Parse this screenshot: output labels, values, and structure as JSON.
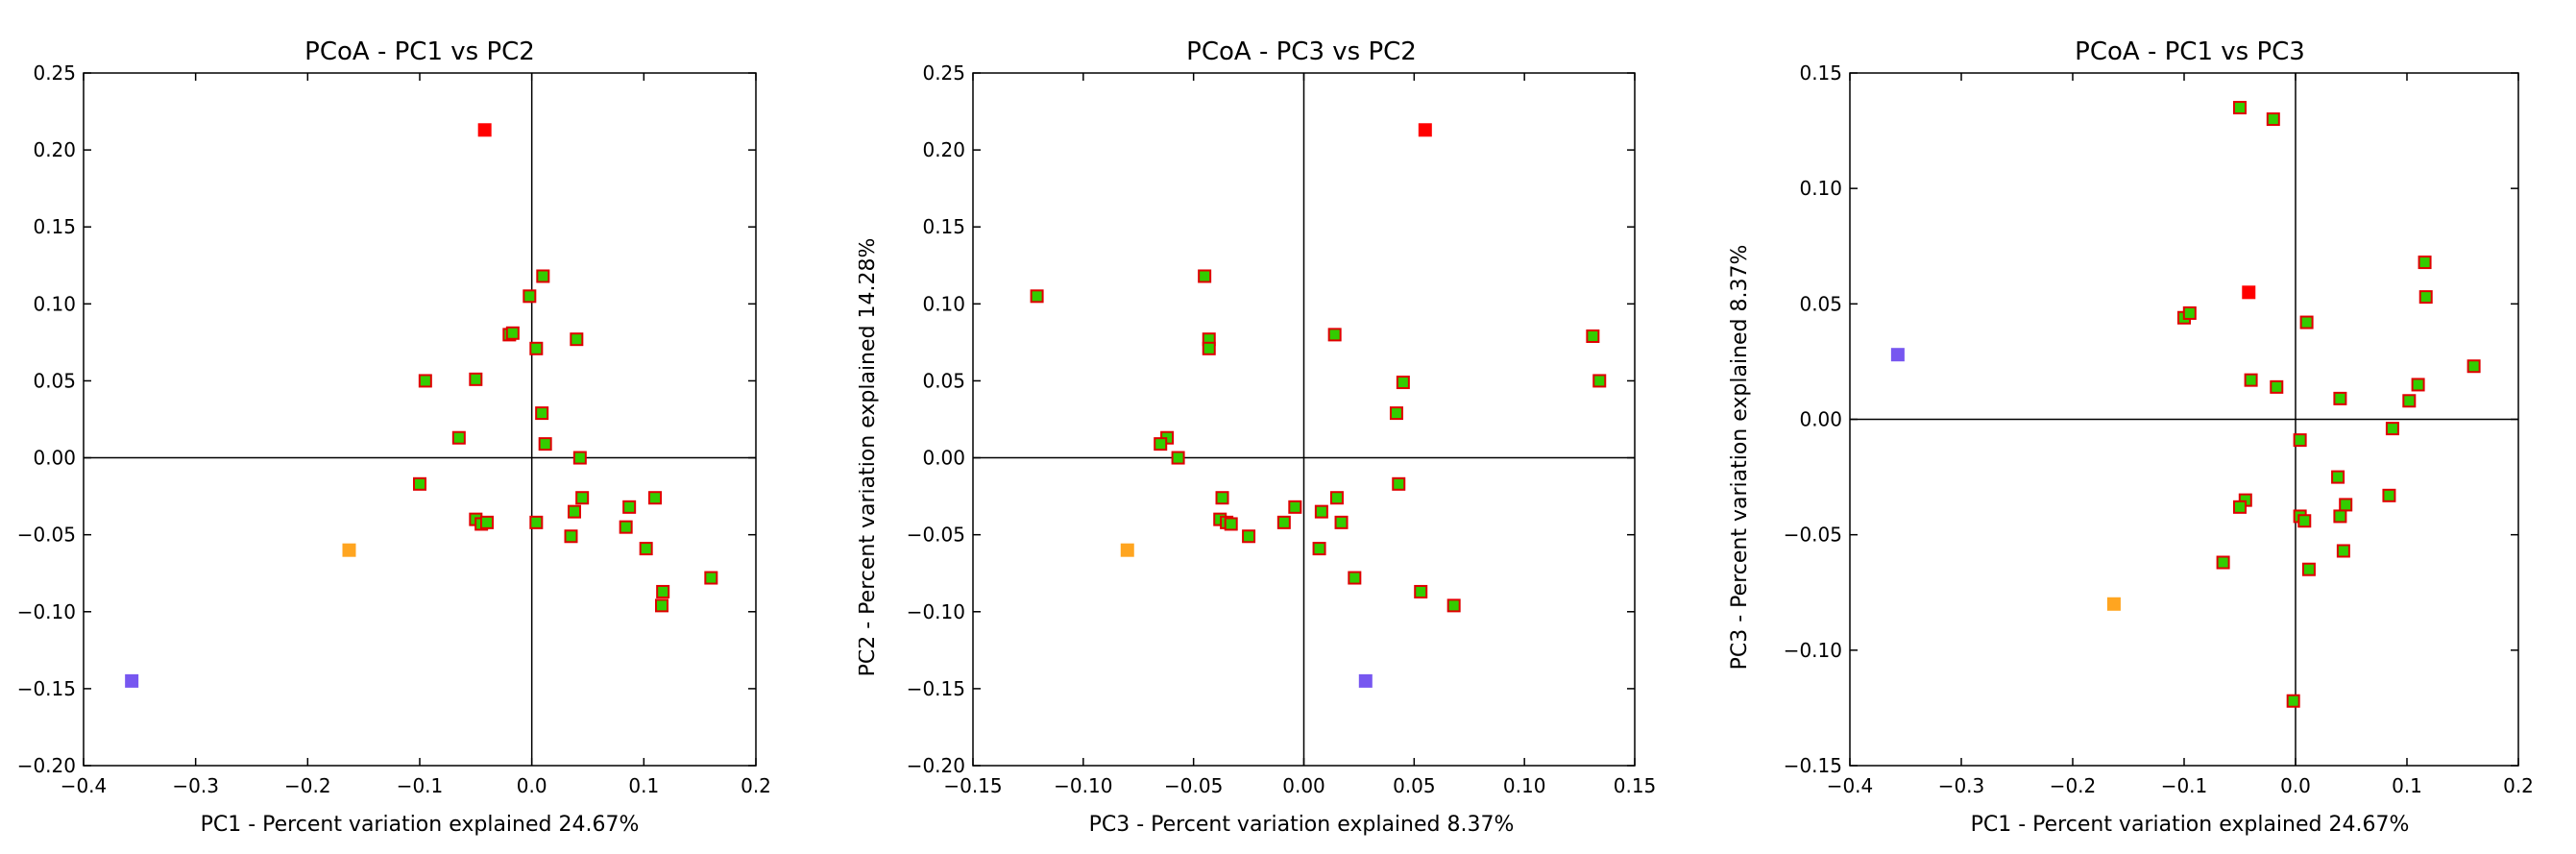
{
  "colors": {
    "marker_fill": "#33cc00",
    "marker_edge": "#e00000",
    "red": "#ff0000",
    "orange": "#ffa520",
    "purple": "#7757f0",
    "axes": "#000000"
  },
  "chart_data": [
    {
      "type": "scatter",
      "title": "PCoA - PC1 vs PC2",
      "xlabel": "PC1 - Percent variation explained 24.67%",
      "ylabel": "",
      "xlim": [
        -0.4,
        0.2
      ],
      "ylim": [
        -0.2,
        0.25
      ],
      "xticks": [
        -0.4,
        -0.3,
        -0.2,
        -0.1,
        0.0,
        0.1,
        0.2
      ],
      "yticks": [
        -0.2,
        -0.15,
        -0.1,
        -0.05,
        0.0,
        0.05,
        0.1,
        0.15,
        0.2,
        0.25
      ],
      "xtick_labels": [
        "−0.4",
        "−0.3",
        "−0.2",
        "−0.1",
        "0.0",
        "0.1",
        "0.2"
      ],
      "ytick_labels": [
        "−0.20",
        "−0.15",
        "−0.10",
        "−0.05",
        "0.00",
        "0.05",
        "0.10",
        "0.15",
        "0.20",
        "0.25"
      ],
      "grid": false,
      "zero_lines": true,
      "points": [
        {
          "x": -0.042,
          "y": 0.213,
          "color": "red"
        },
        {
          "x": -0.163,
          "y": -0.06,
          "color": "orange"
        },
        {
          "x": -0.357,
          "y": -0.145,
          "color": "purple"
        },
        {
          "x": 0.01,
          "y": 0.118,
          "color": "green"
        },
        {
          "x": -0.002,
          "y": 0.105,
          "color": "green"
        },
        {
          "x": -0.02,
          "y": 0.08,
          "color": "green"
        },
        {
          "x": -0.017,
          "y": 0.081,
          "color": "green"
        },
        {
          "x": 0.04,
          "y": 0.077,
          "color": "green"
        },
        {
          "x": 0.004,
          "y": 0.071,
          "color": "green"
        },
        {
          "x": -0.095,
          "y": 0.05,
          "color": "green"
        },
        {
          "x": -0.05,
          "y": 0.051,
          "color": "green"
        },
        {
          "x": 0.009,
          "y": 0.029,
          "color": "green"
        },
        {
          "x": -0.065,
          "y": 0.013,
          "color": "green"
        },
        {
          "x": 0.012,
          "y": 0.009,
          "color": "green"
        },
        {
          "x": 0.043,
          "y": 0.0,
          "color": "green"
        },
        {
          "x": -0.1,
          "y": -0.017,
          "color": "green"
        },
        {
          "x": 0.045,
          "y": -0.026,
          "color": "green"
        },
        {
          "x": 0.11,
          "y": -0.026,
          "color": "green"
        },
        {
          "x": 0.087,
          "y": -0.032,
          "color": "green"
        },
        {
          "x": 0.038,
          "y": -0.035,
          "color": "green"
        },
        {
          "x": -0.05,
          "y": -0.04,
          "color": "green"
        },
        {
          "x": -0.045,
          "y": -0.043,
          "color": "green"
        },
        {
          "x": -0.04,
          "y": -0.042,
          "color": "green"
        },
        {
          "x": 0.004,
          "y": -0.042,
          "color": "green"
        },
        {
          "x": 0.084,
          "y": -0.045,
          "color": "green"
        },
        {
          "x": 0.035,
          "y": -0.051,
          "color": "green"
        },
        {
          "x": 0.102,
          "y": -0.059,
          "color": "green"
        },
        {
          "x": 0.16,
          "y": -0.078,
          "color": "green"
        },
        {
          "x": 0.117,
          "y": -0.087,
          "color": "green"
        },
        {
          "x": 0.116,
          "y": -0.096,
          "color": "green"
        }
      ]
    },
    {
      "type": "scatter",
      "title": "PCoA - PC3 vs PC2",
      "xlabel": "PC3 - Percent variation explained 8.37%",
      "ylabel": "PC2 - Percent variation explained 14.28%",
      "xlim": [
        -0.15,
        0.15
      ],
      "ylim": [
        -0.2,
        0.25
      ],
      "xticks": [
        -0.15,
        -0.1,
        -0.05,
        0.0,
        0.05,
        0.1,
        0.15
      ],
      "yticks": [
        -0.2,
        -0.15,
        -0.1,
        -0.05,
        0.0,
        0.05,
        0.1,
        0.15,
        0.2,
        0.25
      ],
      "xtick_labels": [
        "−0.15",
        "−0.10",
        "−0.05",
        "0.00",
        "0.05",
        "0.10",
        "0.15"
      ],
      "ytick_labels": [
        "−0.20",
        "−0.15",
        "−0.10",
        "−0.05",
        "0.00",
        "0.05",
        "0.10",
        "0.15",
        "0.20",
        "0.25"
      ],
      "grid": false,
      "zero_lines": true,
      "points": [
        {
          "x": 0.055,
          "y": 0.213,
          "color": "red"
        },
        {
          "x": -0.08,
          "y": -0.06,
          "color": "orange"
        },
        {
          "x": 0.028,
          "y": -0.145,
          "color": "purple"
        },
        {
          "x": -0.121,
          "y": 0.105,
          "color": "green"
        },
        {
          "x": -0.045,
          "y": 0.118,
          "color": "green"
        },
        {
          "x": -0.043,
          "y": 0.077,
          "color": "green"
        },
        {
          "x": -0.043,
          "y": 0.071,
          "color": "green"
        },
        {
          "x": 0.014,
          "y": 0.08,
          "color": "green"
        },
        {
          "x": 0.131,
          "y": 0.079,
          "color": "green"
        },
        {
          "x": 0.134,
          "y": 0.05,
          "color": "green"
        },
        {
          "x": 0.045,
          "y": 0.049,
          "color": "green"
        },
        {
          "x": 0.042,
          "y": 0.029,
          "color": "green"
        },
        {
          "x": -0.062,
          "y": 0.013,
          "color": "green"
        },
        {
          "x": -0.065,
          "y": 0.009,
          "color": "green"
        },
        {
          "x": -0.057,
          "y": 0.0,
          "color": "green"
        },
        {
          "x": 0.043,
          "y": -0.017,
          "color": "green"
        },
        {
          "x": -0.037,
          "y": -0.026,
          "color": "green"
        },
        {
          "x": 0.015,
          "y": -0.026,
          "color": "green"
        },
        {
          "x": -0.004,
          "y": -0.032,
          "color": "green"
        },
        {
          "x": 0.008,
          "y": -0.035,
          "color": "green"
        },
        {
          "x": -0.038,
          "y": -0.04,
          "color": "green"
        },
        {
          "x": -0.035,
          "y": -0.042,
          "color": "green"
        },
        {
          "x": -0.033,
          "y": -0.043,
          "color": "green"
        },
        {
          "x": -0.009,
          "y": -0.042,
          "color": "green"
        },
        {
          "x": 0.017,
          "y": -0.042,
          "color": "green"
        },
        {
          "x": -0.025,
          "y": -0.051,
          "color": "green"
        },
        {
          "x": 0.007,
          "y": -0.059,
          "color": "green"
        },
        {
          "x": 0.023,
          "y": -0.078,
          "color": "green"
        },
        {
          "x": 0.053,
          "y": -0.087,
          "color": "green"
        },
        {
          "x": 0.068,
          "y": -0.096,
          "color": "green"
        }
      ]
    },
    {
      "type": "scatter",
      "title": "PCoA - PC1 vs PC3",
      "xlabel": "PC1 - Percent variation explained 24.67%",
      "ylabel": "PC3 - Percent variation explained 8.37%",
      "xlim": [
        -0.4,
        0.2
      ],
      "ylim": [
        -0.15,
        0.15
      ],
      "xticks": [
        -0.4,
        -0.3,
        -0.2,
        -0.1,
        0.0,
        0.1,
        0.2
      ],
      "yticks": [
        -0.15,
        -0.1,
        -0.05,
        0.0,
        0.05,
        0.1,
        0.15
      ],
      "xtick_labels": [
        "−0.4",
        "−0.3",
        "−0.2",
        "−0.1",
        "0.0",
        "0.1",
        "0.2"
      ],
      "ytick_labels": [
        "−0.15",
        "−0.10",
        "−0.05",
        "0.00",
        "0.05",
        "0.10",
        "0.15"
      ],
      "grid": false,
      "zero_lines": true,
      "points": [
        {
          "x": -0.042,
          "y": 0.055,
          "color": "red"
        },
        {
          "x": -0.163,
          "y": -0.08,
          "color": "orange"
        },
        {
          "x": -0.357,
          "y": 0.028,
          "color": "purple"
        },
        {
          "x": -0.05,
          "y": 0.135,
          "color": "green"
        },
        {
          "x": -0.02,
          "y": 0.13,
          "color": "green"
        },
        {
          "x": -0.1,
          "y": 0.044,
          "color": "green"
        },
        {
          "x": -0.095,
          "y": 0.046,
          "color": "green"
        },
        {
          "x": 0.01,
          "y": 0.042,
          "color": "green"
        },
        {
          "x": 0.116,
          "y": 0.068,
          "color": "green"
        },
        {
          "x": 0.117,
          "y": 0.053,
          "color": "green"
        },
        {
          "x": 0.16,
          "y": 0.023,
          "color": "green"
        },
        {
          "x": -0.04,
          "y": 0.017,
          "color": "green"
        },
        {
          "x": -0.017,
          "y": 0.014,
          "color": "green"
        },
        {
          "x": 0.11,
          "y": 0.015,
          "color": "green"
        },
        {
          "x": 0.04,
          "y": 0.009,
          "color": "green"
        },
        {
          "x": 0.102,
          "y": 0.008,
          "color": "green"
        },
        {
          "x": 0.087,
          "y": -0.004,
          "color": "green"
        },
        {
          "x": 0.004,
          "y": -0.009,
          "color": "green"
        },
        {
          "x": 0.038,
          "y": -0.025,
          "color": "green"
        },
        {
          "x": 0.084,
          "y": -0.033,
          "color": "green"
        },
        {
          "x": -0.045,
          "y": -0.035,
          "color": "green"
        },
        {
          "x": -0.05,
          "y": -0.038,
          "color": "green"
        },
        {
          "x": 0.045,
          "y": -0.037,
          "color": "green"
        },
        {
          "x": 0.04,
          "y": -0.042,
          "color": "green"
        },
        {
          "x": 0.004,
          "y": -0.042,
          "color": "green"
        },
        {
          "x": 0.008,
          "y": -0.044,
          "color": "green"
        },
        {
          "x": 0.043,
          "y": -0.057,
          "color": "green"
        },
        {
          "x": -0.065,
          "y": -0.062,
          "color": "green"
        },
        {
          "x": 0.012,
          "y": -0.065,
          "color": "green"
        },
        {
          "x": -0.002,
          "y": -0.122,
          "color": "green"
        }
      ]
    }
  ]
}
